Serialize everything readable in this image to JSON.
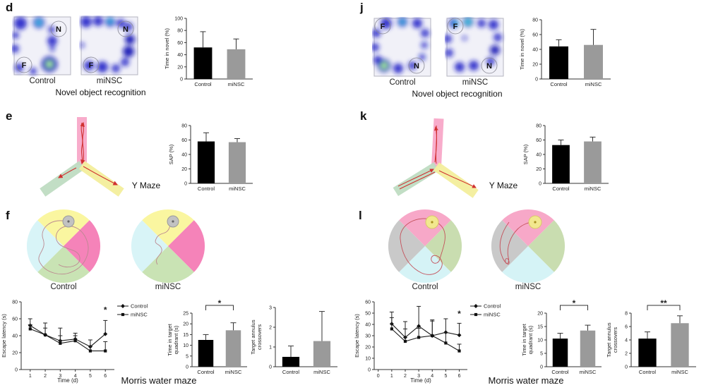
{
  "panels": {
    "d": {
      "letter": "d",
      "caption": "Novel object recognition",
      "images": {
        "control": {
          "label": "Control",
          "novel_zone": "N",
          "familiar_zone": "F"
        },
        "minsc": {
          "label": "miNSC",
          "novel_zone": "N",
          "familiar_zone": "F"
        }
      }
    },
    "j": {
      "letter": "j",
      "caption": "Novel object recognition",
      "images": {
        "control": {
          "label": "Control",
          "novel_zone": "N",
          "familiar_zone": "F"
        },
        "minsc": {
          "label": "miNSC",
          "novel_zone": "N",
          "familiar_zone": "F"
        }
      }
    },
    "e": {
      "letter": "e",
      "caption": "Y Maze"
    },
    "k": {
      "letter": "k",
      "caption": "Y Maze"
    },
    "f": {
      "letter": "f",
      "caption": "Morris water maze",
      "images": {
        "control": {
          "label": "Control"
        },
        "minsc": {
          "label": "miNSC"
        }
      }
    },
    "l": {
      "letter": "l",
      "caption": "Morris water maze",
      "images": {
        "control": {
          "label": "Control"
        },
        "minsc": {
          "label": "miNSC"
        }
      }
    }
  },
  "colors": {
    "control_bar": "#000000",
    "minsc_bar": "#9a9a9a",
    "axis": "#333333",
    "line_series": "#1a1a1a",
    "maze_pink": "#f8a8c8",
    "maze_green": "#bfdcc2",
    "maze_yellow": "#f3ee9c",
    "track_red": "#d03030"
  },
  "chart_data": [
    {
      "id": "chart-d",
      "type": "bar",
      "title": "",
      "ylabel": "Time in novel (%)",
      "categories": [
        "Control",
        "miNSC"
      ],
      "values": [
        52,
        49
      ],
      "errors": [
        26,
        17
      ],
      "ylim": [
        0,
        100
      ],
      "yticks": [
        0,
        20,
        40,
        60,
        80,
        100
      ],
      "colors": [
        "#000000",
        "#9a9a9a"
      ],
      "sig": null
    },
    {
      "id": "chart-j",
      "type": "bar",
      "title": "",
      "ylabel": "Time in novel (%)",
      "categories": [
        "Control",
        "miNSC"
      ],
      "values": [
        44,
        46
      ],
      "errors": [
        9,
        21
      ],
      "ylim": [
        0,
        80
      ],
      "yticks": [
        0,
        20,
        40,
        60,
        80
      ],
      "colors": [
        "#000000",
        "#9a9a9a"
      ],
      "sig": null
    },
    {
      "id": "chart-e",
      "type": "bar",
      "title": "",
      "ylabel": "SAP (%)",
      "categories": [
        "Control",
        "miNSC"
      ],
      "values": [
        58,
        57
      ],
      "errors": [
        12,
        5
      ],
      "ylim": [
        0,
        80
      ],
      "yticks": [
        0,
        20,
        40,
        60,
        80
      ],
      "colors": [
        "#000000",
        "#9a9a9a"
      ],
      "sig": null
    },
    {
      "id": "chart-k",
      "type": "bar",
      "title": "",
      "ylabel": "SAP (%)",
      "categories": [
        "Control",
        "miNSC"
      ],
      "values": [
        53,
        58
      ],
      "errors": [
        7,
        6
      ],
      "ylim": [
        0,
        80
      ],
      "yticks": [
        0,
        20,
        40,
        60,
        80
      ],
      "colors": [
        "#000000",
        "#9a9a9a"
      ],
      "sig": null
    },
    {
      "id": "chart-f-latency",
      "type": "line",
      "ylabel": "Escape latency (s)",
      "xlabel": "Time (d)",
      "x": [
        1,
        2,
        3,
        4,
        5,
        6
      ],
      "xticks": [
        1,
        2,
        3,
        4,
        5,
        6
      ],
      "xlim": [
        0.4,
        6.6
      ],
      "ylim": [
        0,
        80
      ],
      "yticks": [
        0,
        20,
        40,
        60,
        80
      ],
      "legend_position": "right",
      "series": [
        {
          "name": "Control",
          "marker": "diamond",
          "values": [
            52,
            41,
            34,
            36,
            27,
            42
          ],
          "errors": [
            8,
            14,
            15,
            7,
            8,
            16
          ]
        },
        {
          "name": "miNSC",
          "marker": "square",
          "values": [
            48,
            41,
            31,
            34,
            22,
            22
          ],
          "errors": [
            5,
            8,
            9,
            6,
            6,
            11
          ]
        }
      ],
      "annotation": {
        "x": 6,
        "y": 67,
        "text": "*"
      }
    },
    {
      "id": "chart-f-quadrant",
      "type": "bar",
      "title": "",
      "ylabel": [
        "Time in target",
        "quadrant (s)"
      ],
      "categories": [
        "Control",
        "miNSC"
      ],
      "values": [
        12.5,
        17
      ],
      "errors": [
        2.5,
        3.5
      ],
      "ylim": [
        0,
        25
      ],
      "yticks": [
        0,
        5,
        10,
        15,
        20,
        25
      ],
      "colors": [
        "#000000",
        "#9a9a9a"
      ],
      "sig": "*"
    },
    {
      "id": "chart-f-annulus",
      "type": "bar",
      "title": "",
      "ylabel": [
        "Target annulus",
        "crossovers"
      ],
      "categories": [
        "Control",
        "miNSC"
      ],
      "values": [
        0.5,
        1.3
      ],
      "errors": [
        0.55,
        1.5
      ],
      "ylim": [
        0,
        3
      ],
      "yticks": [
        0,
        1,
        2,
        3
      ],
      "colors": [
        "#000000",
        "#9a9a9a"
      ],
      "sig": null
    },
    {
      "id": "chart-l-latency",
      "type": "line",
      "ylabel": "Escape latency (s)",
      "xlabel": "Time (d)",
      "x": [
        1,
        2,
        3,
        4,
        5,
        6
      ],
      "xticks": [
        0,
        1,
        2,
        3,
        4,
        5,
        6
      ],
      "xlim": [
        -0.3,
        6.6
      ],
      "ylim": [
        0,
        60
      ],
      "yticks": [
        0,
        10,
        20,
        30,
        40,
        50,
        60
      ],
      "legend_position": "right",
      "series": [
        {
          "name": "Control",
          "marker": "diamond",
          "values": [
            40.5,
            28.5,
            38.5,
            30,
            33,
            30.5
          ],
          "errors": [
            10.5,
            14,
            17.5,
            14,
            12,
            10.5
          ]
        },
        {
          "name": "miNSC",
          "marker": "square",
          "values": [
            36,
            25,
            28.5,
            30,
            23.5,
            16.5
          ],
          "errors": [
            10,
            11,
            8,
            13,
            9,
            6
          ]
        }
      ],
      "annotation": {
        "x": 6,
        "y": 47,
        "text": "*"
      }
    },
    {
      "id": "chart-l-quadrant",
      "type": "bar",
      "title": "",
      "ylabel": [
        "Time in target",
        "quadrant (s)"
      ],
      "categories": [
        "Control",
        "miNSC"
      ],
      "values": [
        10.5,
        13.5
      ],
      "errors": [
        2,
        2
      ],
      "ylim": [
        0,
        20
      ],
      "yticks": [
        0,
        5,
        10,
        15,
        20
      ],
      "colors": [
        "#000000",
        "#9a9a9a"
      ],
      "sig": "*"
    },
    {
      "id": "chart-l-annulus",
      "type": "bar",
      "title": "",
      "ylabel": [
        "Target annulus",
        "crossovers"
      ],
      "categories": [
        "Control",
        "miNSC"
      ],
      "values": [
        4.2,
        6.5
      ],
      "errors": [
        1,
        1.1
      ],
      "ylim": [
        0,
        8
      ],
      "yticks": [
        0,
        2,
        4,
        6,
        8
      ],
      "colors": [
        "#000000",
        "#9a9a9a"
      ],
      "sig": "**"
    }
  ]
}
